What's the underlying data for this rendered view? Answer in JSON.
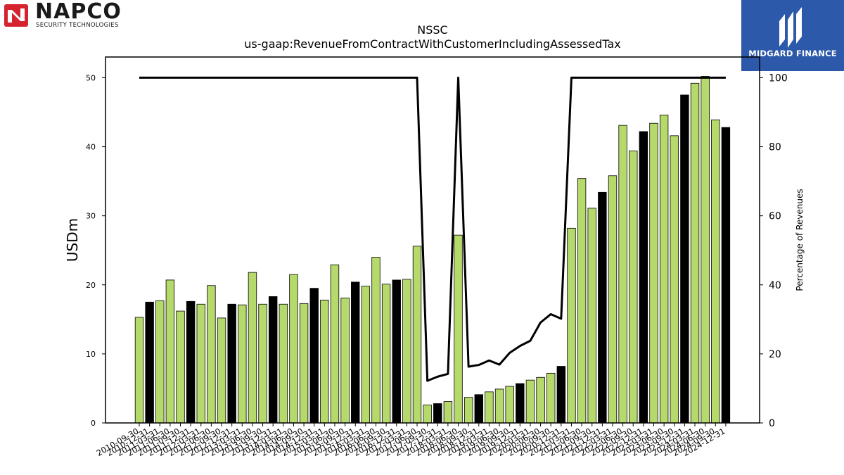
{
  "logos": {
    "left": {
      "name": "NAPCO",
      "tagline": "SECURITY TECHNOLOGIES"
    },
    "right": {
      "name": "MIDGARD FINANCE"
    }
  },
  "chart_data": {
    "type": "bar",
    "title": "NSSC",
    "subtitle": "us-gaap:RevenueFromContractWithCustomerIncludingAssessedTax",
    "ylabel": "USDm",
    "y2label": "Percentage of Revenues",
    "ylim": [
      0,
      53
    ],
    "y2lim": [
      0,
      106
    ],
    "yticks": [
      0,
      10,
      20,
      30,
      40,
      50
    ],
    "y2ticks": [
      0,
      20,
      40,
      60,
      80,
      100
    ],
    "colors": {
      "quarter": "#b5d96a",
      "fiscal_year": "#000000",
      "line": "#000000"
    },
    "categories": [
      "2010-09-30",
      "2010-12-31",
      "2011-03-31",
      "2011-06-30",
      "2011-09-30",
      "2011-12-31",
      "2012-03-31",
      "2012-06-30",
      "2012-09-30",
      "2012-12-31",
      "2013-03-31",
      "2013-06-30",
      "2013-09-30",
      "2013-12-31",
      "2014-03-31",
      "2014-06-30",
      "2014-09-30",
      "2014-12-31",
      "2015-03-31",
      "2015-06-30",
      "2015-09-30",
      "2015-12-31",
      "2016-03-31",
      "2016-06-30",
      "2016-09-30",
      "2016-12-31",
      "2017-03-31",
      "2017-06-30",
      "2017-09-30",
      "2017-12-31",
      "2018-03-31",
      "2018-06-30",
      "2018-09-30",
      "2018-12-31",
      "2019-03-31",
      "2019-06-30",
      "2019-09-30",
      "2019-12-31",
      "2020-03-31",
      "2020-06-30",
      "2020-09-30",
      "2020-12-31",
      "2021-03-31",
      "2021-06-30",
      "2021-09-30",
      "2021-12-31",
      "2022-03-31",
      "2022-06-30",
      "2022-09-30",
      "2022-12-31",
      "2023-03-31",
      "2023-06-30",
      "2023-09-30",
      "2023-12-31",
      "2024-03-31",
      "2024-06-30",
      "2024-09-30",
      "2024-12-31"
    ],
    "series": [
      {
        "values": [
          15.3,
          17.5,
          17.7,
          20.7,
          16.2,
          17.6,
          17.2,
          19.9,
          15.2,
          17.2,
          17.1,
          21.8,
          17.2,
          18.3,
          17.2,
          21.5,
          17.3,
          19.5,
          17.8,
          22.9,
          18.1,
          20.4,
          19.8,
          24.0,
          20.1,
          20.7,
          20.8,
          25.6,
          2.6,
          2.8,
          3.1,
          27.2,
          3.7,
          4.1,
          4.5,
          4.9,
          5.3,
          5.7,
          6.2,
          6.6,
          7.2,
          8.2,
          28.2,
          35.4,
          31.1,
          33.4,
          35.8,
          43.1,
          39.4,
          42.2,
          43.4,
          44.6,
          41.6,
          47.5,
          49.2,
          50.2,
          43.9,
          42.8
        ],
        "period": [
          "Q",
          "FY",
          "Q",
          "Q",
          "Q",
          "FY",
          "Q",
          "Q",
          "Q",
          "FY",
          "Q",
          "Q",
          "Q",
          "FY",
          "Q",
          "Q",
          "Q",
          "FY",
          "Q",
          "Q",
          "Q",
          "FY",
          "Q",
          "Q",
          "Q",
          "FY",
          "Q",
          "Q",
          "Q",
          "FY",
          "Q",
          "Q",
          "Q",
          "FY",
          "Q",
          "Q",
          "Q",
          "FY",
          "Q",
          "Q",
          "Q",
          "FY",
          "Q",
          "Q",
          "Q",
          "FY",
          "Q",
          "Q",
          "Q",
          "FY",
          "Q",
          "Q",
          "Q",
          "FY",
          "Q",
          "Q",
          "Q",
          "FY"
        ]
      },
      {
        "axis": "right",
        "values": [
          100,
          100,
          100,
          100,
          100,
          100,
          100,
          100,
          100,
          100,
          100,
          100,
          100,
          100,
          100,
          100,
          100,
          100,
          100,
          100,
          100,
          100,
          100,
          100,
          100,
          100,
          100,
          100,
          12.2,
          13.4,
          14.2,
          100,
          16.3,
          16.8,
          18.1,
          16.9,
          20.3,
          22.3,
          23.8,
          29.1,
          31.5,
          30.2,
          100,
          100,
          100,
          100,
          100,
          100,
          100,
          100,
          100,
          100,
          100,
          100,
          100,
          100,
          100,
          100
        ]
      }
    ]
  }
}
